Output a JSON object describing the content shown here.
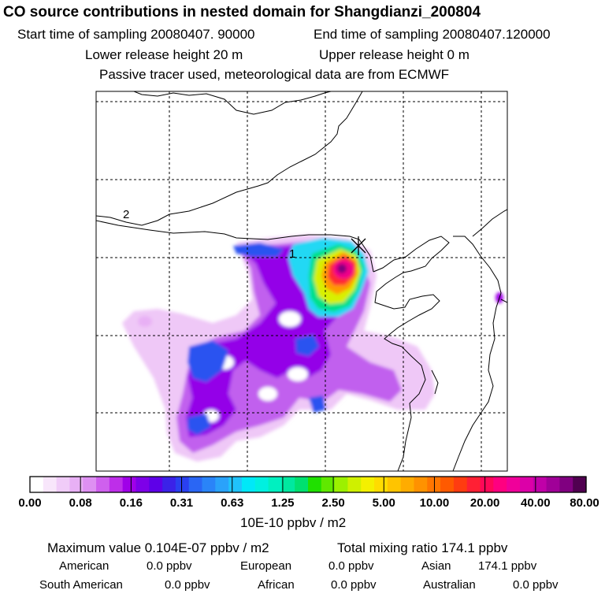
{
  "header": {
    "title": "CO  source contributions in nested domain for Shangdianzi_200804",
    "start_label": "Start time of sampling 20080407. 90000",
    "end_label": "End time of sampling 20080407.120000",
    "lower_release": "Lower release height   20 m",
    "upper_release": "Upper release height    0 m",
    "tracer_note": "Passive tracer used, meteorological data are from ECMWF"
  },
  "chart_data": {
    "type": "heatmap",
    "title": "CO  source contributions in nested domain for Shangdianzi_200804",
    "colorbar": {
      "unit": "10E-10 ppbv / m2",
      "tick_labels": [
        "0.00",
        "0.08",
        "0.16",
        "0.31",
        "0.63",
        "1.25",
        "2.50",
        "5.00",
        "10.00",
        "20.00",
        "40.00",
        "80.00"
      ],
      "colors": [
        "#ffffff",
        "#f8e6fb",
        "#f0ccf8",
        "#e8b0f5",
        "#de90f2",
        "#cf60ee",
        "#be2ee9",
        "#a000e8",
        "#7e00e8",
        "#5e00e8",
        "#3b22e8",
        "#2a40f0",
        "#2a66f4",
        "#2a84f8",
        "#2aa2fa",
        "#20c2fb",
        "#00e8f8",
        "#00f0e0",
        "#00f0c0",
        "#00e8a0",
        "#00e070",
        "#20e000",
        "#60e800",
        "#9cf000",
        "#cff000",
        "#f4f000",
        "#ffdc00",
        "#ffc400",
        "#ffac00",
        "#ff9200",
        "#ff7600",
        "#ff5a00",
        "#ff3c10",
        "#ff2034",
        "#ff0858",
        "#ff0080",
        "#f0009a",
        "#dc00a8",
        "#c000a8",
        "#a00098",
        "#800080",
        "#500050"
      ]
    },
    "contour_labels": [
      "1",
      "2"
    ],
    "receptor_marker": "Shangdianzi",
    "grid": true
  },
  "summary": {
    "max_value": "Maximum value  0.104E-07 ppbv / m2",
    "total_mixing": "Total mixing ratio      174.1 ppbv",
    "american_label": "American",
    "american_value": "0.0 ppbv",
    "european_label": "European",
    "european_value": "0.0 ppbv",
    "asian_label": "Asian",
    "asian_value": "174.1 ppbv",
    "south_american_label": "South American",
    "south_american_value": "0.0 ppbv",
    "african_label": "African",
    "african_value": "0.0 ppbv",
    "australian_label": "Australian",
    "australian_value": "0.0 ppbv"
  },
  "colors": {
    "grid_line": "#000000",
    "frame": "#000000",
    "background": "#ffffff"
  }
}
